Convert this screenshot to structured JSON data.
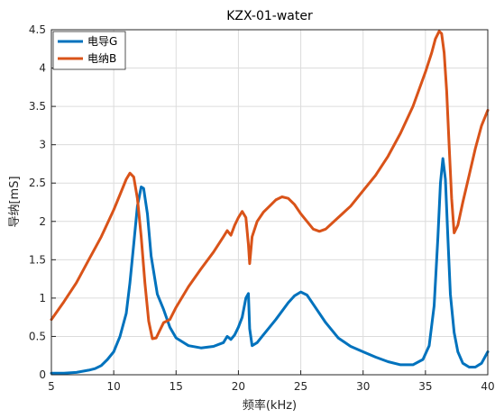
{
  "chart_data": {
    "type": "line",
    "title": "KZX-01-water",
    "xlabel": "频率(kHz)",
    "ylabel": "导纳[mS]",
    "xlim": [
      5,
      40
    ],
    "ylim": [
      0,
      4.5
    ],
    "xticks": [
      "5",
      "10",
      "15",
      "20",
      "25",
      "30",
      "35",
      "40"
    ],
    "yticks": [
      "0",
      "0.5",
      "1",
      "1.5",
      "2",
      "2.5",
      "3",
      "3.5",
      "4",
      "4.5"
    ],
    "grid": true,
    "legend_position": "top-left",
    "series": [
      {
        "name": "电导G",
        "color": "#0072BD",
        "x": [
          5,
          6,
          7,
          8,
          8.5,
          9,
          9.5,
          10,
          10.5,
          11,
          11.3,
          11.6,
          11.9,
          12.2,
          12.4,
          12.7,
          13,
          13.5,
          14,
          14.5,
          15,
          16,
          17,
          18,
          18.8,
          19.1,
          19.4,
          19.7,
          20,
          20.3,
          20.6,
          20.8,
          20.9,
          21.1,
          21.5,
          22,
          23,
          24,
          24.5,
          25,
          25.5,
          26,
          27,
          28,
          29,
          30,
          31,
          32,
          33,
          34,
          34.8,
          35.3,
          35.7,
          36,
          36.2,
          36.4,
          36.6,
          36.8,
          37,
          37.3,
          37.6,
          38,
          38.5,
          39,
          39.5,
          40
        ],
        "y": [
          0.02,
          0.02,
          0.03,
          0.06,
          0.08,
          0.12,
          0.2,
          0.3,
          0.5,
          0.8,
          1.2,
          1.7,
          2.2,
          2.45,
          2.43,
          2.1,
          1.55,
          1.05,
          0.85,
          0.62,
          0.48,
          0.38,
          0.35,
          0.37,
          0.42,
          0.5,
          0.46,
          0.52,
          0.62,
          0.75,
          1.0,
          1.06,
          0.6,
          0.38,
          0.42,
          0.52,
          0.72,
          0.94,
          1.03,
          1.08,
          1.04,
          0.92,
          0.68,
          0.48,
          0.37,
          0.3,
          0.23,
          0.17,
          0.13,
          0.13,
          0.2,
          0.38,
          0.9,
          1.8,
          2.5,
          2.82,
          2.55,
          1.8,
          1.05,
          0.55,
          0.3,
          0.15,
          0.1,
          0.1,
          0.15,
          0.3
        ]
      },
      {
        "name": "电纳B",
        "color": "#D95319",
        "x": [
          5,
          6,
          7,
          8,
          9,
          10,
          10.5,
          11,
          11.3,
          11.6,
          11.9,
          12.2,
          12.5,
          12.8,
          13.1,
          13.4,
          13.7,
          14,
          14.5,
          15,
          16,
          17,
          18,
          18.8,
          19.1,
          19.4,
          19.7,
          20,
          20.3,
          20.6,
          20.8,
          20.9,
          21.1,
          21.5,
          22,
          22.5,
          23,
          23.5,
          24,
          24.5,
          25,
          25.5,
          26,
          26.5,
          27,
          28,
          29,
          30,
          31,
          32,
          33,
          34,
          35,
          35.5,
          35.8,
          36.1,
          36.3,
          36.5,
          36.7,
          36.9,
          37.1,
          37.3,
          37.6,
          38,
          38.5,
          39,
          39.5,
          40
        ],
        "y": [
          0.72,
          0.95,
          1.2,
          1.5,
          1.8,
          2.15,
          2.35,
          2.55,
          2.63,
          2.58,
          2.3,
          1.8,
          1.2,
          0.7,
          0.47,
          0.48,
          0.58,
          0.68,
          0.72,
          0.88,
          1.15,
          1.38,
          1.6,
          1.8,
          1.88,
          1.82,
          1.95,
          2.05,
          2.13,
          2.05,
          1.7,
          1.45,
          1.8,
          2.0,
          2.12,
          2.2,
          2.28,
          2.32,
          2.3,
          2.22,
          2.1,
          2.0,
          1.9,
          1.87,
          1.9,
          2.05,
          2.2,
          2.4,
          2.6,
          2.85,
          3.15,
          3.5,
          3.95,
          4.2,
          4.38,
          4.48,
          4.45,
          4.2,
          3.7,
          3.0,
          2.3,
          1.85,
          1.95,
          2.25,
          2.6,
          2.95,
          3.25,
          3.45
        ]
      }
    ]
  }
}
